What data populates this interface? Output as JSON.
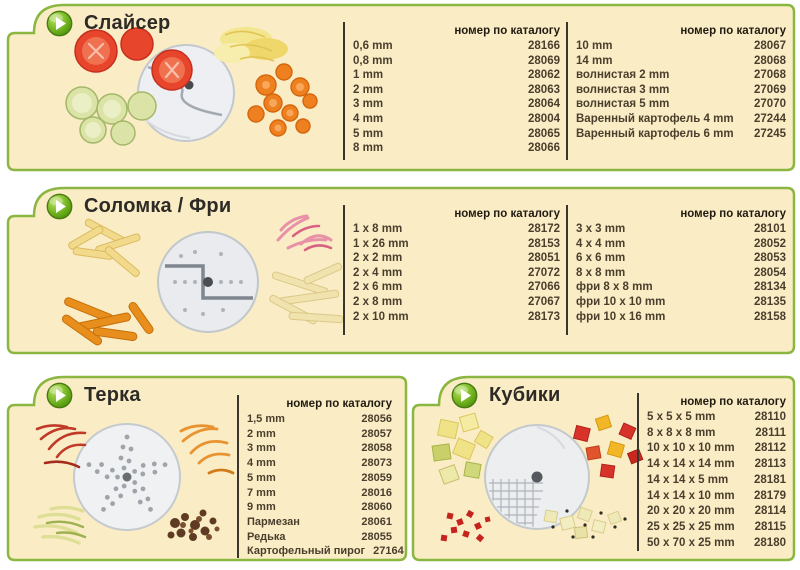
{
  "colors": {
    "panel_bg": "#FAEDC6",
    "border_green": "#8BB642",
    "play_green_light": "#B9E060",
    "play_green_dark": "#55990E",
    "rule_dark": "#3B362C",
    "table_text": "#4A3E2C",
    "header_text": "#201A10"
  },
  "icons": {
    "panel_bullet": "play-icon"
  },
  "panels": [
    {
      "title": "Слайсер",
      "illustration": "slicer disc with tomato slices, cucumber slices, shredded cabbage and carrot slices",
      "tables": [
        {
          "header": "номер по каталогу",
          "rows": [
            {
              "label": "0,6 mm",
              "value": "28166"
            },
            {
              "label": "0,8 mm",
              "value": "28069"
            },
            {
              "label": "1 mm",
              "value": "28062"
            },
            {
              "label": "2 mm",
              "value": "28063"
            },
            {
              "label": "3 mm",
              "value": "28064"
            },
            {
              "label": "4 mm",
              "value": "28004"
            },
            {
              "label": "5 mm",
              "value": "28065"
            },
            {
              "label": "8 mm",
              "value": "28066"
            }
          ]
        },
        {
          "header": "номер по каталогу",
          "rows": [
            {
              "label": "10 mm",
              "value": "28067"
            },
            {
              "label": "14 mm",
              "value": "28068"
            },
            {
              "label": "волнистая 2 mm",
              "value": "27068"
            },
            {
              "label": "волнистая 3 mm",
              "value": "27069"
            },
            {
              "label": "волнистая 5 mm",
              "value": "27070"
            },
            {
              "label": "Варенный картофель 4 mm",
              "value": "27244"
            },
            {
              "label": "Варенный картофель 6 mm",
              "value": "27245"
            }
          ]
        }
      ]
    },
    {
      "title": "Соломка / Фри",
      "illustration": "julienne disc with french-fry sticks and vegetable strips",
      "tables": [
        {
          "header": "номер по каталогу",
          "rows": [
            {
              "label": "1 x 8 mm",
              "value": "28172"
            },
            {
              "label": "1 x 26 mm",
              "value": "28153"
            },
            {
              "label": "2 x 2 mm",
              "value": "28051"
            },
            {
              "label": "2 x 4 mm",
              "value": "27072"
            },
            {
              "label": "2 x 6 mm",
              "value": "27066"
            },
            {
              "label": "2 x 8 mm",
              "value": "27067"
            },
            {
              "label": "2 x 10 mm",
              "value": "28173"
            }
          ]
        },
        {
          "header": "номер по каталогу",
          "rows": [
            {
              "label": "3 x 3 mm",
              "value": "28101"
            },
            {
              "label": "4 x 4 mm",
              "value": "28052"
            },
            {
              "label": "6 x 6 mm",
              "value": "28053"
            },
            {
              "label": "8 x 8 mm",
              "value": "28054"
            },
            {
              "label": "фри 8 x 8 mm",
              "value": "28134"
            },
            {
              "label": "фри 10 x 10 mm",
              "value": "28135"
            },
            {
              "label": "фри 10 x 16 mm",
              "value": "28158"
            }
          ]
        }
      ]
    },
    {
      "title": "Терка",
      "illustration": "grating disc with shredded beet, carrot, zucchini and chocolate",
      "tables": [
        {
          "header": "номер по каталогу",
          "rows": [
            {
              "label": "1,5 mm",
              "value": "28056"
            },
            {
              "label": "2 mm",
              "value": "28057"
            },
            {
              "label": "3 mm",
              "value": "28058"
            },
            {
              "label": "4 mm",
              "value": "28073"
            },
            {
              "label": "5 mm",
              "value": "28059"
            },
            {
              "label": "7 mm",
              "value": "28016"
            },
            {
              "label": "9 mm",
              "value": "28060"
            },
            {
              "label": "Пармезан",
              "value": "28061"
            },
            {
              "label": "Редька",
              "value": "28055"
            },
            {
              "label": "Картофельный пирог",
              "value": "27164"
            }
          ]
        }
      ]
    },
    {
      "title": "Кубики",
      "illustration": "dicing grid disc with diced peppers, pineapple and zucchini cubes",
      "tables": [
        {
          "header": "номер по каталогу",
          "rows": [
            {
              "label": "5 x 5 x 5 mm",
              "value": "28110"
            },
            {
              "label": "8 x 8 x 8 mm",
              "value": "28111"
            },
            {
              "label": "10 x 10 x 10 mm",
              "value": "28112"
            },
            {
              "label": "14 x 14 x 14 mm",
              "value": "28113"
            },
            {
              "label": "14 x 14 x 5 mm",
              "value": "28181"
            },
            {
              "label": "14 x 14 x 10 mm",
              "value": "28179"
            },
            {
              "label": "20 x 20 x 20 mm",
              "value": "28114"
            },
            {
              "label": "25 x 25 x 25 mm",
              "value": "28115"
            },
            {
              "label": "50 x 70 x 25 mm",
              "value": "28180"
            }
          ]
        }
      ]
    }
  ]
}
